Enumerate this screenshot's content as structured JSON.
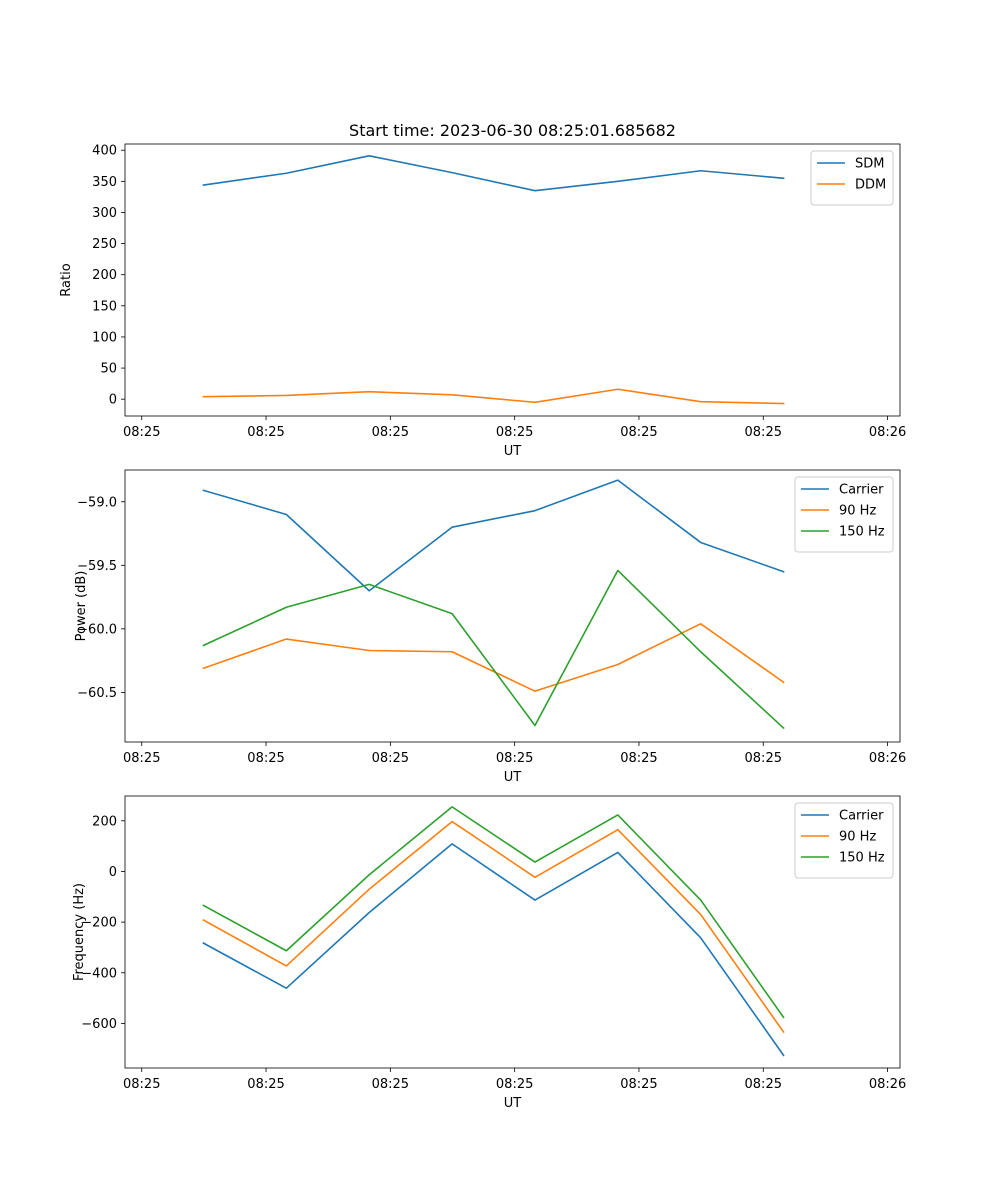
{
  "figure": {
    "title": "Start time: 2023-06-30 08:25:01.685682"
  },
  "chart_data": [
    {
      "type": "line",
      "xlabel": "UT",
      "ylabel": "Ratio",
      "xtick_labels": [
        "08:25",
        "08:25",
        "08:25",
        "08:25",
        "08:25",
        "08:25",
        "08:26"
      ],
      "yticks": [
        0,
        50,
        100,
        150,
        200,
        250,
        300,
        350,
        400
      ],
      "ylim": [
        -27,
        410
      ],
      "x": [
        1,
        2,
        3,
        4,
        5,
        6,
        7,
        8
      ],
      "xlim": [
        0.053,
        9.405
      ],
      "xticks": [
        0.255,
        1.755,
        3.255,
        4.755,
        6.255,
        7.755,
        9.255
      ],
      "legend": "top-right",
      "grid": false,
      "series": [
        {
          "name": "SDM",
          "color": "#1f77b4",
          "values": [
            344,
            363,
            391,
            364,
            335,
            350,
            367,
            355
          ]
        },
        {
          "name": "DDM",
          "color": "#ff7f0e",
          "values": [
            4,
            6,
            12,
            7,
            -5,
            16,
            -4,
            -7
          ]
        }
      ]
    },
    {
      "type": "line",
      "xlabel": "UT",
      "ylabel": "Power (dB)",
      "xtick_labels": [
        "08:25",
        "08:25",
        "08:25",
        "08:25",
        "08:25",
        "08:25",
        "08:26"
      ],
      "yticks": [
        -60.5,
        -60.0,
        -59.5,
        -59.0
      ],
      "ytick_labels": [
        "−60.5",
        "−60.0",
        "−59.5",
        "−59.0"
      ],
      "ylim": [
        -60.89,
        -58.75
      ],
      "x": [
        1,
        2,
        3,
        4,
        5,
        6,
        7,
        8
      ],
      "xlim": [
        0.053,
        9.405
      ],
      "xticks": [
        0.255,
        1.755,
        3.255,
        4.755,
        6.255,
        7.755,
        9.255
      ],
      "legend": "top-right",
      "grid": false,
      "series": [
        {
          "name": "Carrier",
          "color": "#1f77b4",
          "values": [
            -58.91,
            -59.1,
            -59.7,
            -59.2,
            -59.07,
            -58.83,
            -59.32,
            -59.55
          ]
        },
        {
          "name": "90 Hz",
          "color": "#ff7f0e",
          "values": [
            -60.31,
            -60.08,
            -60.17,
            -60.18,
            -60.49,
            -60.28,
            -59.96,
            -60.42
          ]
        },
        {
          "name": "150 Hz",
          "color": "#2ca02c",
          "values": [
            -60.13,
            -59.83,
            -59.65,
            -59.88,
            -60.76,
            -59.54,
            -60.18,
            -60.78
          ]
        }
      ]
    },
    {
      "type": "line",
      "xlabel": "UT",
      "ylabel": "Frequency (Hz)",
      "xtick_labels": [
        "08:25",
        "08:25",
        "08:25",
        "08:25",
        "08:25",
        "08:25",
        "08:26"
      ],
      "yticks": [
        -600,
        -400,
        -200,
        0,
        200
      ],
      "ytick_labels": [
        "−600",
        "−400",
        "−200",
        "0",
        "200"
      ],
      "ylim": [
        -776,
        298
      ],
      "x": [
        1,
        2,
        3,
        4,
        5,
        6,
        7,
        8
      ],
      "xlim": [
        0.053,
        9.405
      ],
      "xticks": [
        0.255,
        1.755,
        3.255,
        4.755,
        6.255,
        7.755,
        9.255
      ],
      "legend": "top-right",
      "grid": false,
      "series": [
        {
          "name": "Carrier",
          "color": "#1f77b4",
          "values": [
            -283,
            -461,
            -162,
            109,
            -113,
            75,
            -262,
            -726
          ]
        },
        {
          "name": "90 Hz",
          "color": "#ff7f0e",
          "values": [
            -192,
            -373,
            -70,
            197,
            -23,
            165,
            -170,
            -634
          ]
        },
        {
          "name": "150 Hz",
          "color": "#2ca02c",
          "values": [
            -134,
            -313,
            -13,
            255,
            37,
            223,
            -113,
            -576
          ]
        }
      ]
    }
  ]
}
